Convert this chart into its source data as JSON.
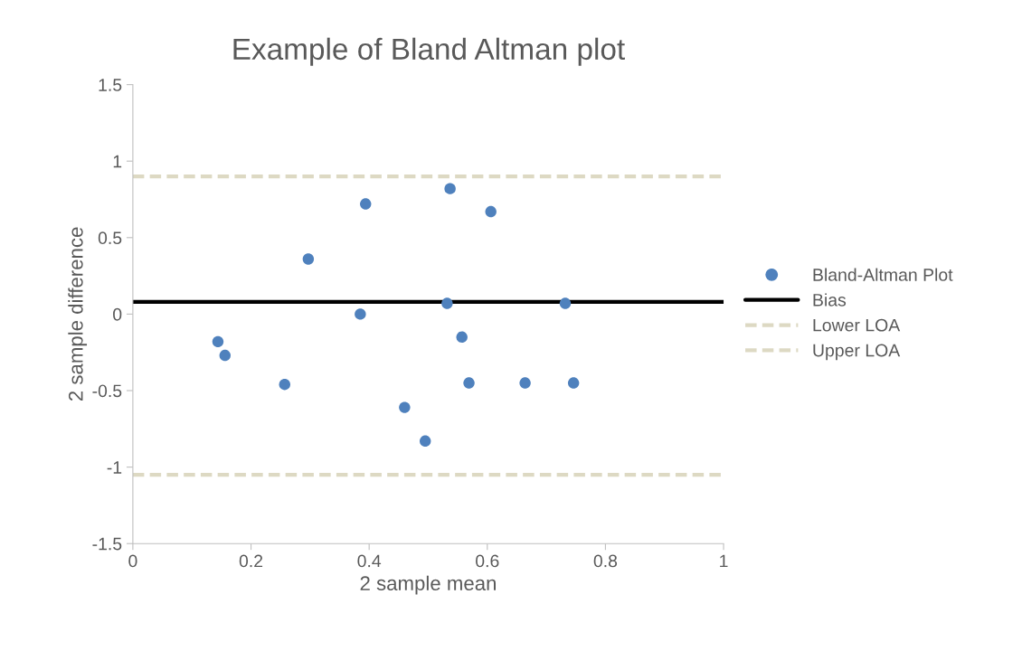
{
  "chart_data": {
    "type": "scatter",
    "title": "Example of Bland Altman plot",
    "xlabel": "2 sample mean",
    "ylabel": "2 sample difference",
    "xlim": [
      0,
      1
    ],
    "xticks": [
      0,
      0.2,
      0.4,
      0.6,
      0.8,
      1
    ],
    "ylim": [
      -1.5,
      1.5
    ],
    "yticks": [
      -1.5,
      -1,
      -0.5,
      0,
      0.5,
      1,
      1.5
    ],
    "grid": false,
    "legend": "right",
    "series": [
      {
        "name": "Bland-Altman Plot",
        "marker": "circle",
        "color": "#4f81bd",
        "x": [
          0.144,
          0.156,
          0.257,
          0.297,
          0.385,
          0.394,
          0.46,
          0.495,
          0.532,
          0.537,
          0.557,
          0.569,
          0.606,
          0.664,
          0.732,
          0.746
        ],
        "values": [
          -0.18,
          -0.27,
          -0.46,
          0.36,
          0.0,
          0.72,
          -0.61,
          -0.83,
          0.07,
          0.82,
          -0.15,
          -0.45,
          0.67,
          -0.45,
          0.07,
          -0.45
        ]
      },
      {
        "name": "Bias",
        "type": "line",
        "color": "#000000",
        "line_style": "solid",
        "x": [
          0,
          1
        ],
        "values": [
          0.08,
          0.08
        ]
      },
      {
        "name": "Lower LOA",
        "type": "line",
        "color": "#ddd9c3",
        "line_style": "dashed",
        "x": [
          0,
          1
        ],
        "values": [
          -1.05,
          -1.05
        ]
      },
      {
        "name": "Upper LOA",
        "type": "line",
        "color": "#ddd9c3",
        "line_style": "dashed",
        "x": [
          0,
          1
        ],
        "values": [
          0.9,
          0.9
        ]
      }
    ]
  }
}
